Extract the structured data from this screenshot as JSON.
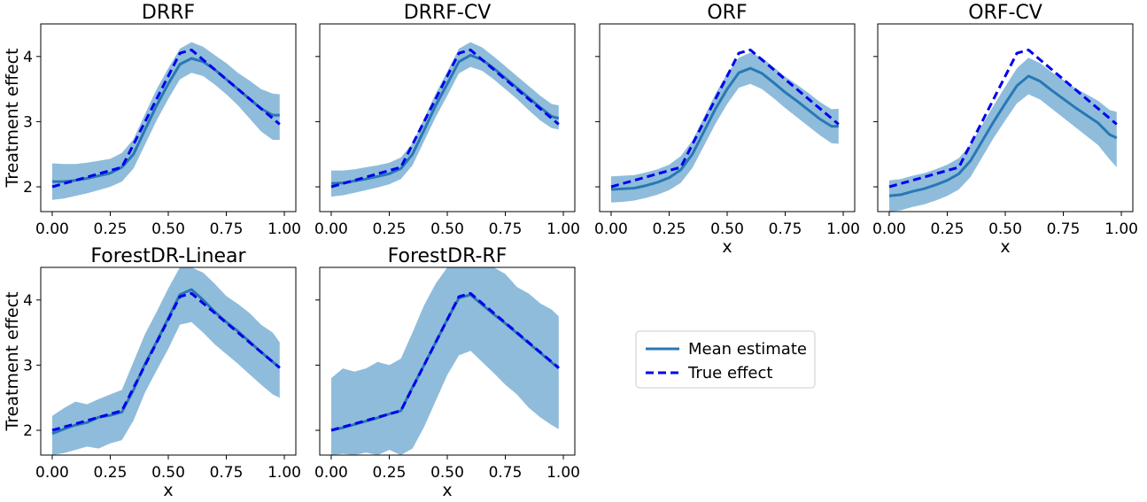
{
  "figure": {
    "legend": {
      "mean_label": "Mean estimate",
      "true_label": "True effect",
      "mean_color": "#2878b4",
      "true_color": "#0000ee",
      "band_color": "#8fbcdb"
    }
  },
  "chart_data": [
    {
      "type": "line",
      "title": "DRRF",
      "xlabel": "",
      "ylabel": "Treatment effect",
      "xlim": [
        0,
        1
      ],
      "ylim": [
        1.62,
        4.5
      ],
      "xticks": [
        "0.00",
        "0.25",
        "0.50",
        "0.75",
        "1.00"
      ],
      "yticks": [
        "2",
        "3",
        "4"
      ],
      "x": [
        0.0,
        0.05,
        0.1,
        0.15,
        0.2,
        0.25,
        0.3,
        0.35,
        0.4,
        0.45,
        0.5,
        0.55,
        0.6,
        0.65,
        0.7,
        0.75,
        0.8,
        0.85,
        0.9,
        0.95,
        0.98
      ],
      "series": [
        {
          "name": "Mean estimate",
          "values": [
            2.08,
            2.08,
            2.1,
            2.13,
            2.17,
            2.21,
            2.3,
            2.5,
            2.88,
            3.25,
            3.58,
            3.88,
            3.97,
            3.92,
            3.8,
            3.65,
            3.5,
            3.35,
            3.2,
            3.1,
            3.1
          ]
        },
        {
          "name": "Lower",
          "values": [
            1.8,
            1.82,
            1.86,
            1.9,
            1.95,
            2.0,
            2.08,
            2.28,
            2.65,
            3.02,
            3.35,
            3.65,
            3.75,
            3.7,
            3.57,
            3.42,
            3.25,
            3.05,
            2.85,
            2.72,
            2.72
          ]
        },
        {
          "name": "Upper",
          "values": [
            2.36,
            2.35,
            2.35,
            2.37,
            2.4,
            2.43,
            2.52,
            2.73,
            3.12,
            3.5,
            3.82,
            4.12,
            4.22,
            4.15,
            4.02,
            3.9,
            3.75,
            3.63,
            3.5,
            3.43,
            3.42
          ]
        },
        {
          "name": "True effect",
          "values": [
            2.0,
            2.05,
            2.1,
            2.15,
            2.2,
            2.25,
            2.3,
            2.65,
            3.0,
            3.35,
            3.7,
            4.05,
            4.1,
            3.95,
            3.8,
            3.65,
            3.5,
            3.35,
            3.2,
            3.05,
            2.96
          ]
        }
      ]
    },
    {
      "type": "line",
      "title": "DRRF-CV",
      "xlabel": "",
      "ylabel": "",
      "xlim": [
        0,
        1
      ],
      "ylim": [
        1.62,
        4.5
      ],
      "xticks": [
        "0.00",
        "0.25",
        "0.50",
        "0.75",
        "1.00"
      ],
      "yticks": [
        "2",
        "3",
        "4"
      ],
      "x": [
        0.0,
        0.05,
        0.1,
        0.15,
        0.2,
        0.25,
        0.3,
        0.35,
        0.4,
        0.45,
        0.5,
        0.55,
        0.6,
        0.65,
        0.7,
        0.75,
        0.8,
        0.85,
        0.9,
        0.95,
        0.98
      ],
      "series": [
        {
          "name": "Mean estimate",
          "values": [
            2.05,
            2.06,
            2.09,
            2.12,
            2.16,
            2.2,
            2.28,
            2.5,
            2.87,
            3.25,
            3.58,
            3.92,
            4.02,
            3.95,
            3.82,
            3.67,
            3.52,
            3.37,
            3.22,
            3.08,
            3.05
          ]
        },
        {
          "name": "Lower",
          "values": [
            1.85,
            1.87,
            1.91,
            1.95,
            1.99,
            2.04,
            2.12,
            2.33,
            2.7,
            3.07,
            3.4,
            3.74,
            3.84,
            3.78,
            3.65,
            3.5,
            3.35,
            3.18,
            3.02,
            2.9,
            2.88
          ]
        },
        {
          "name": "Upper",
          "values": [
            2.25,
            2.25,
            2.27,
            2.3,
            2.33,
            2.37,
            2.45,
            2.67,
            3.05,
            3.43,
            3.77,
            4.12,
            4.22,
            4.14,
            4.0,
            3.85,
            3.7,
            3.55,
            3.4,
            3.27,
            3.25
          ]
        },
        {
          "name": "True effect",
          "values": [
            2.0,
            2.05,
            2.1,
            2.15,
            2.2,
            2.25,
            2.3,
            2.65,
            3.0,
            3.35,
            3.7,
            4.05,
            4.1,
            3.95,
            3.8,
            3.65,
            3.5,
            3.35,
            3.2,
            3.05,
            2.96
          ]
        }
      ]
    },
    {
      "type": "line",
      "title": "ORF",
      "xlabel": "x",
      "ylabel": "",
      "xlim": [
        0,
        1
      ],
      "ylim": [
        1.62,
        4.5
      ],
      "xticks": [
        "0.00",
        "0.25",
        "0.50",
        "0.75",
        "1.00"
      ],
      "yticks": [
        "2",
        "3",
        "4"
      ],
      "x": [
        0.0,
        0.05,
        0.1,
        0.15,
        0.2,
        0.25,
        0.3,
        0.35,
        0.4,
        0.45,
        0.5,
        0.55,
        0.6,
        0.65,
        0.7,
        0.75,
        0.8,
        0.85,
        0.9,
        0.95,
        0.98
      ],
      "series": [
        {
          "name": "Mean estimate",
          "values": [
            1.96,
            1.97,
            1.98,
            2.02,
            2.07,
            2.14,
            2.26,
            2.5,
            2.85,
            3.2,
            3.5,
            3.75,
            3.82,
            3.74,
            3.6,
            3.45,
            3.32,
            3.18,
            3.04,
            2.93,
            2.93
          ]
        },
        {
          "name": "Lower",
          "values": [
            1.76,
            1.77,
            1.79,
            1.83,
            1.88,
            1.95,
            2.06,
            2.29,
            2.63,
            2.97,
            3.27,
            3.52,
            3.58,
            3.5,
            3.36,
            3.21,
            3.07,
            2.93,
            2.79,
            2.67,
            2.66
          ]
        },
        {
          "name": "Upper",
          "values": [
            2.16,
            2.17,
            2.18,
            2.22,
            2.27,
            2.34,
            2.47,
            2.71,
            3.07,
            3.43,
            3.74,
            3.98,
            4.06,
            3.98,
            3.84,
            3.69,
            3.57,
            3.44,
            3.3,
            3.19,
            3.2
          ]
        },
        {
          "name": "True effect",
          "values": [
            2.0,
            2.05,
            2.1,
            2.15,
            2.2,
            2.25,
            2.3,
            2.65,
            3.0,
            3.35,
            3.7,
            4.05,
            4.1,
            3.95,
            3.8,
            3.65,
            3.5,
            3.35,
            3.2,
            3.05,
            2.96
          ]
        }
      ]
    },
    {
      "type": "line",
      "title": "ORF-CV",
      "xlabel": "x",
      "ylabel": "",
      "xlim": [
        0,
        1
      ],
      "ylim": [
        1.62,
        4.5
      ],
      "xticks": [
        "0.00",
        "0.25",
        "0.50",
        "0.75",
        "1.00"
      ],
      "yticks": [
        "2",
        "3",
        "4"
      ],
      "x": [
        0.0,
        0.05,
        0.1,
        0.15,
        0.2,
        0.25,
        0.3,
        0.35,
        0.4,
        0.45,
        0.5,
        0.55,
        0.6,
        0.65,
        0.7,
        0.75,
        0.8,
        0.85,
        0.9,
        0.95,
        0.98
      ],
      "series": [
        {
          "name": "Mean estimate",
          "values": [
            1.86,
            1.88,
            1.93,
            1.97,
            2.03,
            2.1,
            2.2,
            2.4,
            2.7,
            3.0,
            3.28,
            3.55,
            3.7,
            3.62,
            3.48,
            3.35,
            3.22,
            3.1,
            2.98,
            2.8,
            2.75
          ]
        },
        {
          "name": "Lower",
          "values": [
            1.62,
            1.64,
            1.69,
            1.73,
            1.79,
            1.86,
            1.96,
            2.15,
            2.45,
            2.75,
            3.02,
            3.28,
            3.42,
            3.34,
            3.2,
            3.06,
            2.92,
            2.78,
            2.64,
            2.42,
            2.3
          ]
        },
        {
          "name": "Upper",
          "values": [
            2.1,
            2.12,
            2.17,
            2.21,
            2.27,
            2.34,
            2.44,
            2.65,
            2.95,
            3.25,
            3.54,
            3.82,
            3.98,
            3.9,
            3.76,
            3.64,
            3.52,
            3.42,
            3.32,
            3.18,
            3.15
          ]
        },
        {
          "name": "True effect",
          "values": [
            2.0,
            2.05,
            2.1,
            2.15,
            2.2,
            2.25,
            2.3,
            2.65,
            3.0,
            3.35,
            3.7,
            4.05,
            4.1,
            3.95,
            3.8,
            3.65,
            3.5,
            3.35,
            3.2,
            3.05,
            2.96
          ]
        }
      ]
    },
    {
      "type": "line",
      "title": "ForestDR-Linear",
      "xlabel": "x",
      "ylabel": "Treatment effect",
      "xlim": [
        0,
        1
      ],
      "ylim": [
        1.62,
        4.5
      ],
      "xticks": [
        "0.00",
        "0.25",
        "0.50",
        "0.75",
        "1.00"
      ],
      "yticks": [
        "2",
        "3",
        "4"
      ],
      "x": [
        0.0,
        0.05,
        0.1,
        0.15,
        0.2,
        0.25,
        0.3,
        0.35,
        0.4,
        0.45,
        0.5,
        0.55,
        0.6,
        0.65,
        0.7,
        0.75,
        0.8,
        0.85,
        0.9,
        0.95,
        0.98
      ],
      "series": [
        {
          "name": "Mean estimate",
          "values": [
            1.95,
            2.02,
            2.08,
            2.12,
            2.2,
            2.23,
            2.28,
            2.62,
            3.02,
            3.36,
            3.72,
            4.08,
            4.16,
            4.0,
            3.82,
            3.66,
            3.52,
            3.36,
            3.2,
            3.05,
            2.96
          ]
        },
        {
          "name": "Lower",
          "values": [
            1.62,
            1.65,
            1.7,
            1.75,
            1.72,
            1.8,
            1.85,
            2.15,
            2.58,
            2.92,
            3.25,
            3.62,
            3.66,
            3.5,
            3.32,
            3.17,
            3.02,
            2.86,
            2.7,
            2.55,
            2.5
          ]
        },
        {
          "name": "Upper",
          "values": [
            2.22,
            2.34,
            2.44,
            2.4,
            2.48,
            2.55,
            2.62,
            3.05,
            3.48,
            3.82,
            4.18,
            4.5,
            4.5,
            4.42,
            4.25,
            4.06,
            3.94,
            3.8,
            3.62,
            3.5,
            3.35
          ]
        },
        {
          "name": "True effect",
          "values": [
            2.0,
            2.05,
            2.1,
            2.15,
            2.2,
            2.25,
            2.3,
            2.65,
            3.0,
            3.35,
            3.7,
            4.05,
            4.1,
            3.95,
            3.8,
            3.65,
            3.5,
            3.35,
            3.2,
            3.05,
            2.96
          ]
        }
      ]
    },
    {
      "type": "line",
      "title": "ForestDR-RF",
      "xlabel": "x",
      "ylabel": "",
      "xlim": [
        0,
        1
      ],
      "ylim": [
        1.62,
        4.5
      ],
      "xticks": [
        "0.00",
        "0.25",
        "0.50",
        "0.75",
        "1.00"
      ],
      "yticks": [
        "2",
        "3",
        "4"
      ],
      "x": [
        0.0,
        0.05,
        0.1,
        0.15,
        0.2,
        0.25,
        0.3,
        0.35,
        0.4,
        0.45,
        0.5,
        0.55,
        0.6,
        0.65,
        0.7,
        0.75,
        0.8,
        0.85,
        0.9,
        0.95,
        0.98
      ],
      "series": [
        {
          "name": "Mean estimate",
          "values": [
            2.0,
            2.04,
            2.09,
            2.14,
            2.19,
            2.25,
            2.3,
            2.66,
            3.0,
            3.35,
            3.7,
            4.03,
            4.08,
            3.93,
            3.78,
            3.64,
            3.49,
            3.34,
            3.19,
            3.04,
            2.95
          ]
        },
        {
          "name": "Lower",
          "values": [
            1.62,
            1.64,
            1.62,
            1.66,
            1.62,
            1.7,
            1.62,
            1.72,
            2.05,
            2.45,
            2.85,
            3.15,
            3.22,
            3.05,
            2.88,
            2.7,
            2.55,
            2.35,
            2.2,
            2.08,
            2.02
          ]
        },
        {
          "name": "Upper",
          "values": [
            2.8,
            2.95,
            2.9,
            2.95,
            3.05,
            3.0,
            3.1,
            3.5,
            3.92,
            4.25,
            4.5,
            4.5,
            4.5,
            4.5,
            4.5,
            4.4,
            4.2,
            4.1,
            3.95,
            3.85,
            3.75
          ]
        },
        {
          "name": "True effect",
          "values": [
            2.0,
            2.05,
            2.1,
            2.15,
            2.2,
            2.25,
            2.3,
            2.65,
            3.0,
            3.35,
            3.7,
            4.05,
            4.1,
            3.95,
            3.8,
            3.65,
            3.5,
            3.35,
            3.2,
            3.05,
            2.96
          ]
        }
      ]
    }
  ]
}
